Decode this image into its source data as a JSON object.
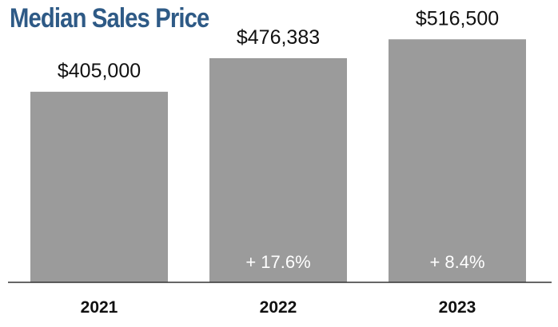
{
  "chart_data": {
    "type": "bar",
    "title": "Median Sales Price",
    "categories": [
      "2021",
      "2022",
      "2023"
    ],
    "values": [
      405000,
      476383,
      516500
    ],
    "value_labels": [
      "$405,000",
      "$476,383",
      "$516,500"
    ],
    "change_labels": [
      "",
      "+ 17.6%",
      "+ 8.4%"
    ],
    "xlabel": "",
    "ylabel": "",
    "ylim": [
      0,
      600000
    ],
    "grid": false,
    "legend": "none",
    "colors": {
      "bar": "#9b9b9b",
      "title": "#2e5a86",
      "axis": "#333333"
    }
  }
}
